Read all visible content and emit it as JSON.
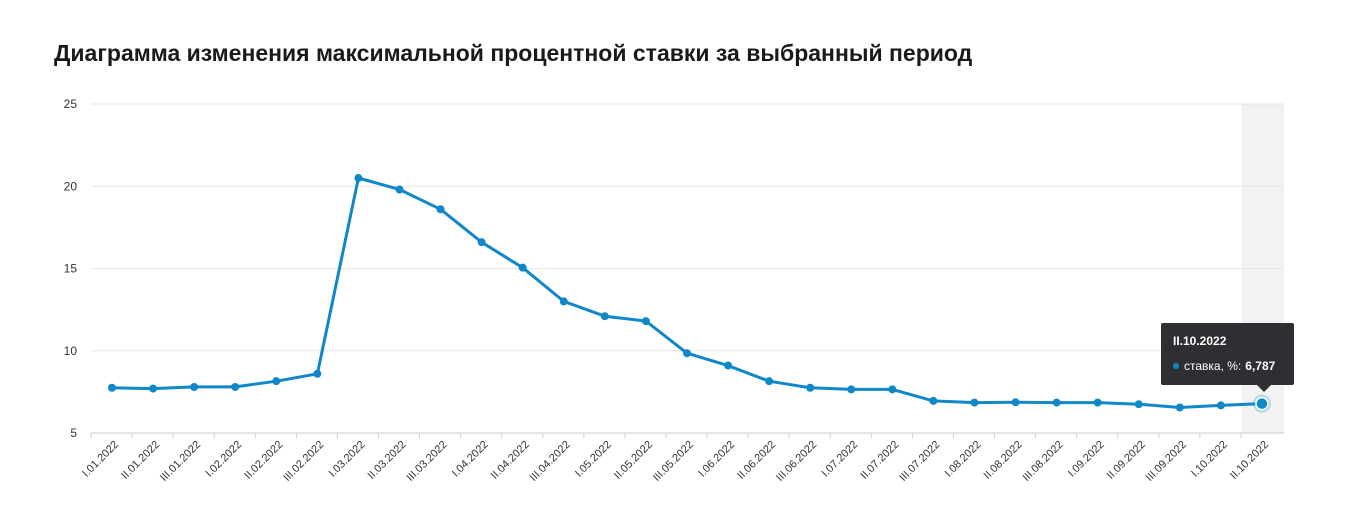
{
  "page_title": "Диаграмма изменения максимальной процентной ставки за выбранный период",
  "colors": {
    "series": "#0f87c8",
    "grid": "#e6e6e6",
    "highlight_band": "#f2f2f2",
    "tooltip_bg": "#2f2f33"
  },
  "chart_data": {
    "type": "line",
    "title": "Диаграмма изменения максимальной процентной ставки за выбранный период",
    "xlabel": "",
    "ylabel": "",
    "ylim": [
      5,
      25
    ],
    "yticks": [
      5,
      10,
      15,
      20,
      25
    ],
    "grid": true,
    "categories": [
      "I.01.2022",
      "II.01.2022",
      "III.01.2022",
      "I.02.2022",
      "II.02.2022",
      "III.02.2022",
      "I.03.2022",
      "II.03.2022",
      "III.03.2022",
      "I.04.2022",
      "II.04.2022",
      "III.04.2022",
      "I.05.2022",
      "II.05.2022",
      "III.05.2022",
      "I.06.2022",
      "II.06.2022",
      "III.06.2022",
      "I.07.2022",
      "II.07.2022",
      "III.07.2022",
      "I.08.2022",
      "II.08.2022",
      "III.08.2022",
      "I.09.2022",
      "II.09.2022",
      "III.09.2022",
      "I.10.2022",
      "II.10.2022"
    ],
    "series": [
      {
        "values": [
          7.75,
          7.7,
          7.8,
          7.8,
          8.15,
          8.6,
          20.5,
          19.8,
          18.6,
          16.6,
          15.05,
          13.0,
          12.1,
          11.8,
          9.85,
          9.1,
          8.15,
          7.75,
          7.65,
          7.65,
          6.95,
          6.85,
          6.87,
          6.85,
          6.85,
          6.75,
          6.55,
          6.68,
          6.787
        ]
      }
    ],
    "highlighted_index": 28,
    "tooltip": {
      "title": "II.10.2022",
      "label": "ставка, %:",
      "value": "6,787"
    }
  }
}
